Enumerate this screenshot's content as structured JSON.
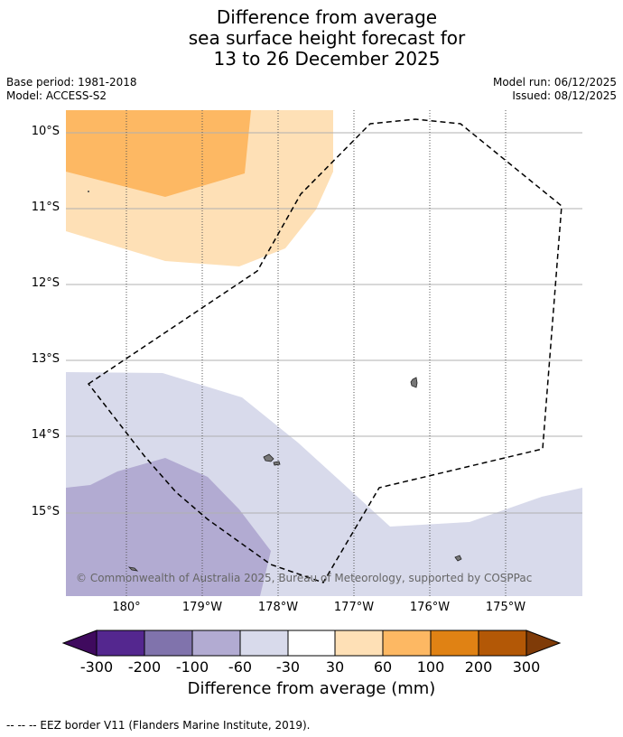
{
  "title": {
    "line1": "Difference from average",
    "line2": "sea surface height forecast for",
    "line3": "13 to 26 December 2025"
  },
  "meta": {
    "base_period": "Base period: 1981-2018",
    "model": "Model: ACCESS-S2",
    "model_run": "Model run: 06/12/2025",
    "issued": "Issued: 08/12/2025"
  },
  "map": {
    "latitude_labels": [
      "10°S",
      "11°S",
      "12°S",
      "13°S",
      "14°S",
      "15°S"
    ],
    "longitude_labels": [
      "180°",
      "179°W",
      "178°W",
      "177°W",
      "176°W",
      "175°W"
    ],
    "copyright": "© Commonwealth of Australia 2025, Bureau of Meteorology, supported by COSPPac"
  },
  "colorbar": {
    "ticks": [
      "-300",
      "-200",
      "-100",
      "-60",
      "-30",
      "30",
      "60",
      "100",
      "200",
      "300"
    ],
    "colors": [
      "#3f0a5e",
      "#54278f",
      "#8073ac",
      "#b2abd2",
      "#d8daeb",
      "#ffffff",
      "#fee0b6",
      "#fdb863",
      "#e08214",
      "#b35806",
      "#7f3b08"
    ],
    "title": "Difference from average (mm)"
  },
  "legend": {
    "eez": "--  --  -- EEZ border V11 (Flanders Marine Institute, 2019)."
  }
}
